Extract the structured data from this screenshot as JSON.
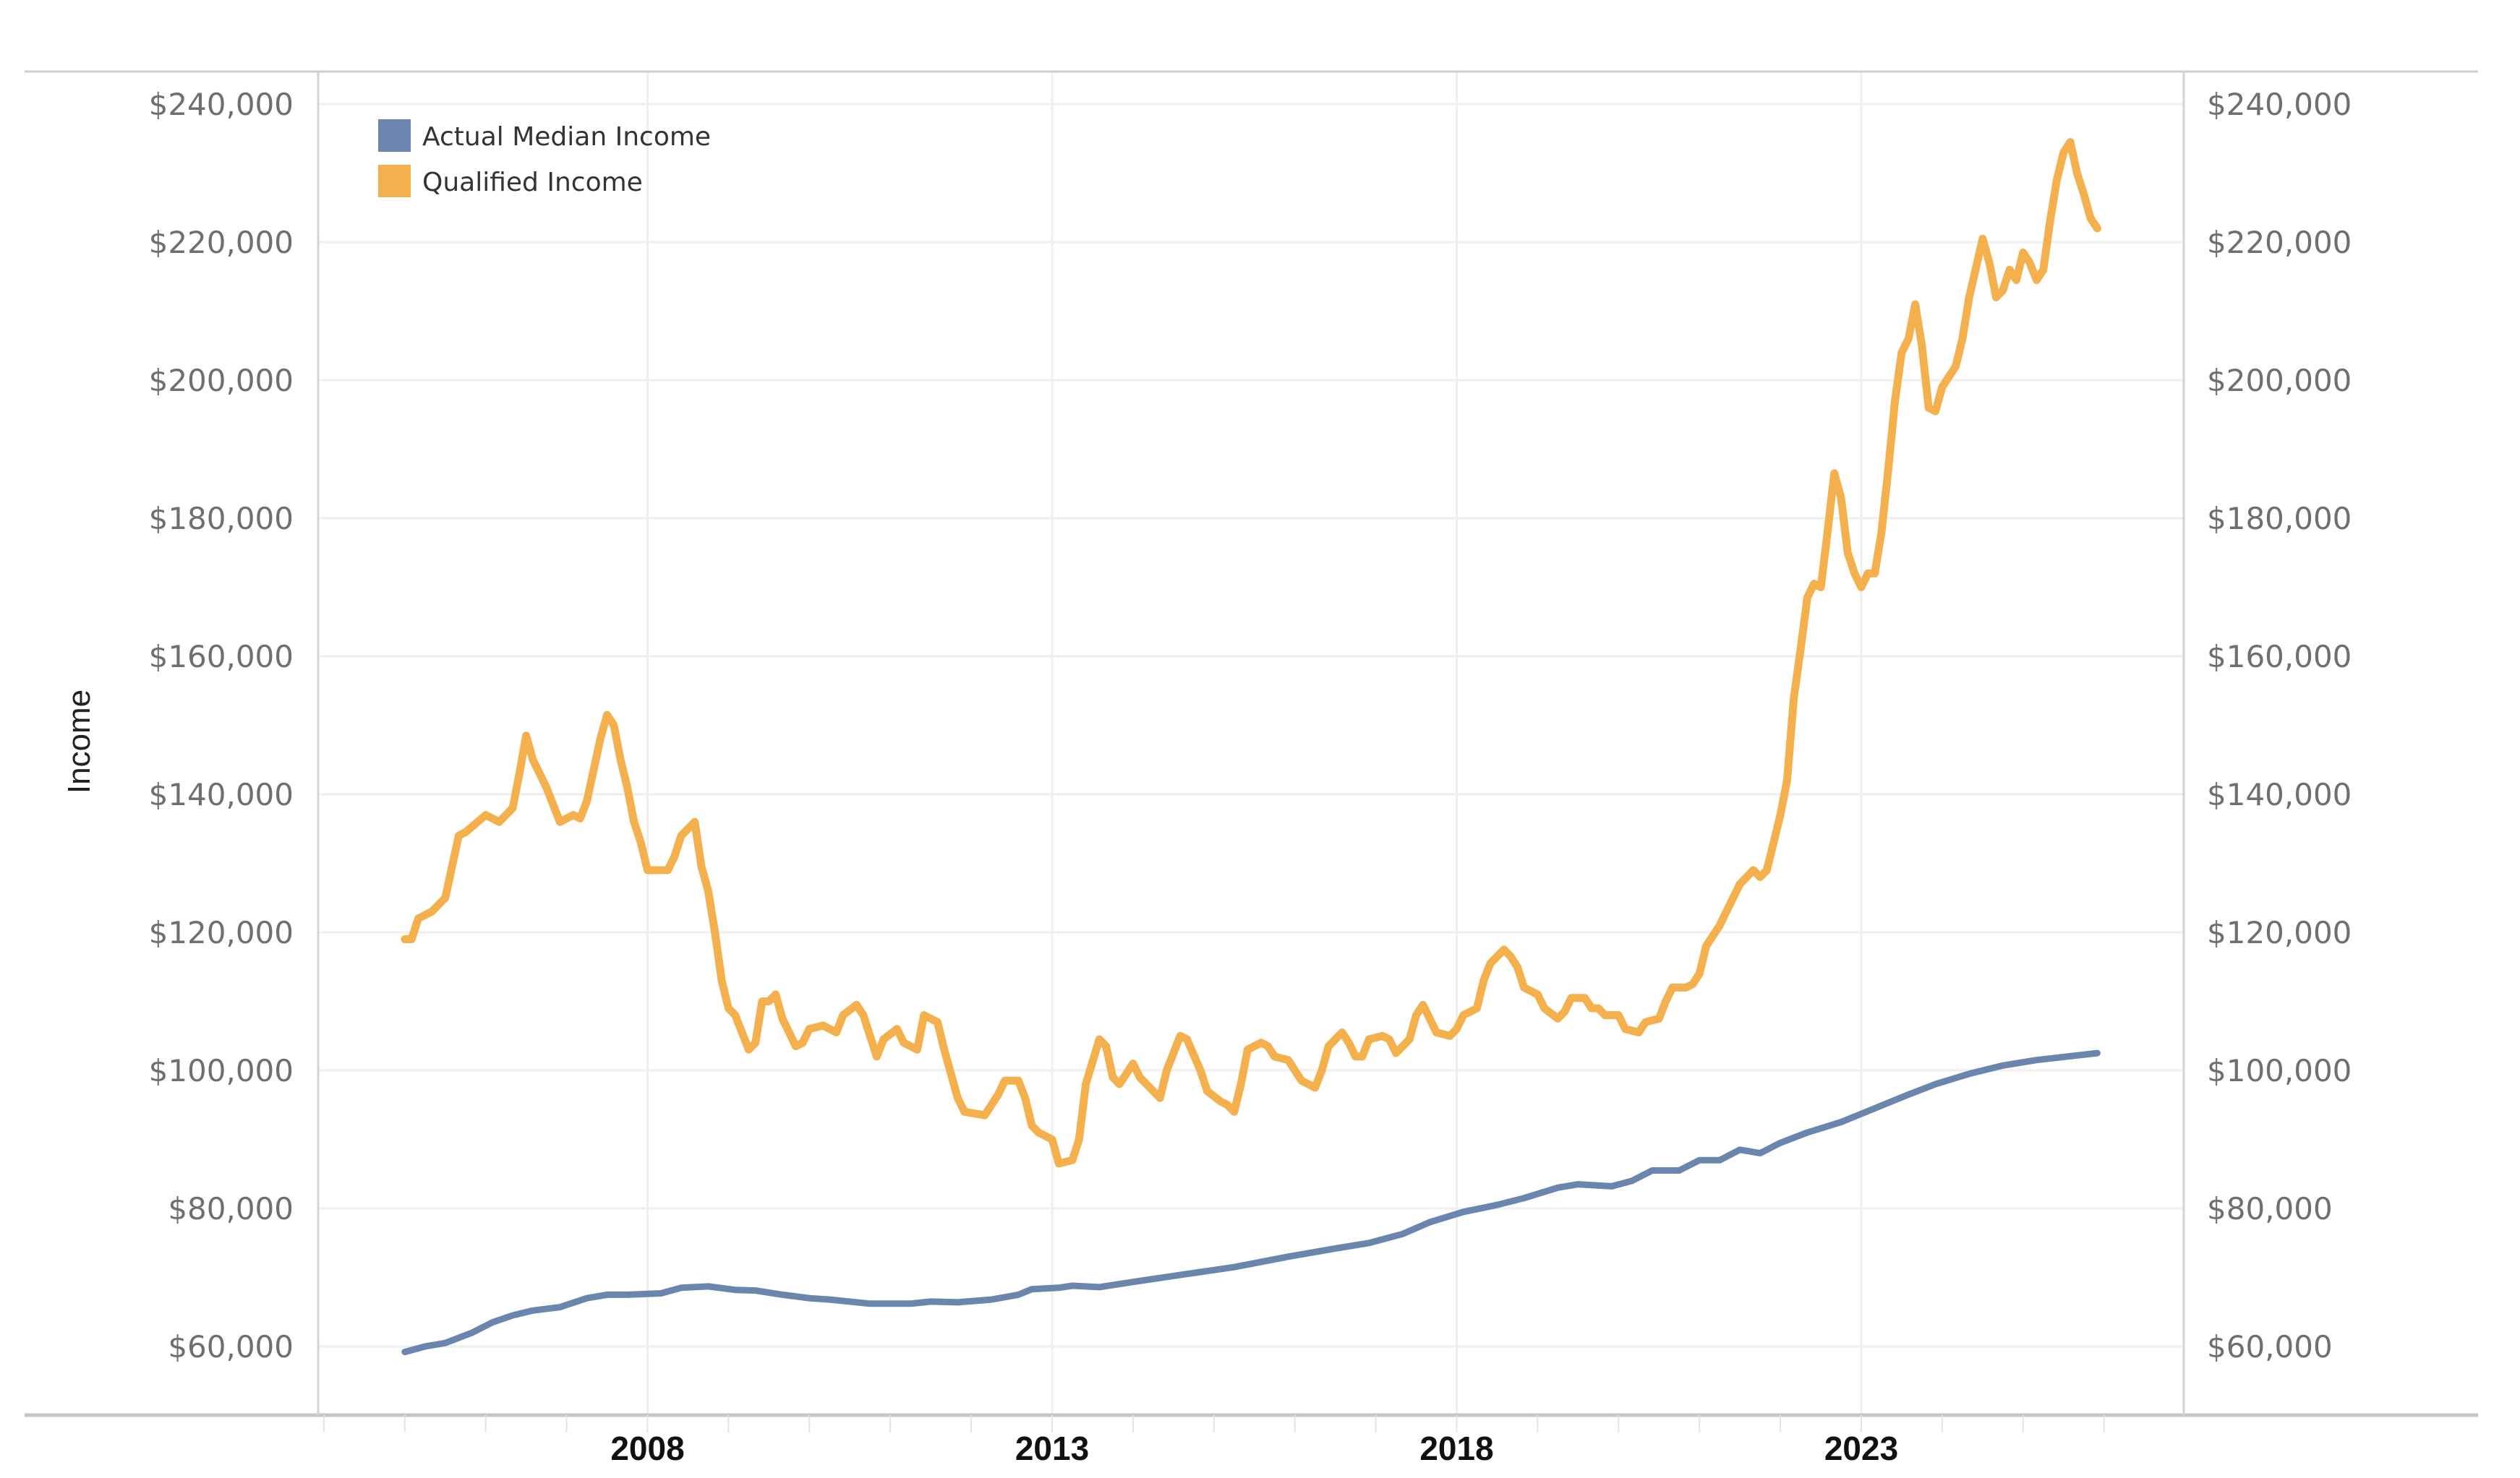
{
  "chart_data": {
    "type": "line",
    "title": "",
    "xlabel": "",
    "ylabel": "Income",
    "ylim": [
      55000,
      245000
    ],
    "xlim": [
      "2004-01",
      "2027-01"
    ],
    "yticks": [
      60000,
      80000,
      100000,
      120000,
      140000,
      160000,
      180000,
      200000,
      220000,
      240000
    ],
    "ytick_labels": [
      "$60,000",
      "$80,000",
      "$100,000",
      "$120,000",
      "$140,000",
      "$160,000",
      "$180,000",
      "$200,000",
      "$220,000",
      "$240,000"
    ],
    "dual_y_axis": true,
    "xticks": [
      "2008",
      "2013",
      "2018",
      "2023"
    ],
    "grid": true,
    "legend_position": "top-left",
    "series": [
      {
        "name": "Actual Median Income",
        "color": "#6a86ae",
        "points": [
          [
            "2005-01",
            59200
          ],
          [
            "2005-04",
            60000
          ],
          [
            "2005-07",
            60500
          ],
          [
            "2005-11",
            62000
          ],
          [
            "2006-02",
            63500
          ],
          [
            "2006-05",
            64500
          ],
          [
            "2006-08",
            65200
          ],
          [
            "2006-12",
            65700
          ],
          [
            "2007-04",
            67000
          ],
          [
            "2007-07",
            67500
          ],
          [
            "2007-10",
            67500
          ],
          [
            "2008-03",
            67700
          ],
          [
            "2008-06",
            68500
          ],
          [
            "2008-10",
            68700
          ],
          [
            "2009-02",
            68200
          ],
          [
            "2009-05",
            68100
          ],
          [
            "2009-09",
            67500
          ],
          [
            "2010-01",
            67000
          ],
          [
            "2010-04",
            66800
          ],
          [
            "2010-10",
            66200
          ],
          [
            "2011-04",
            66200
          ],
          [
            "2011-07",
            66500
          ],
          [
            "2011-11",
            66400
          ],
          [
            "2012-04",
            66800
          ],
          [
            "2012-08",
            67500
          ],
          [
            "2012-10",
            68300
          ],
          [
            "2013-02",
            68500
          ],
          [
            "2013-04",
            68800
          ],
          [
            "2013-08",
            68600
          ],
          [
            "2014-02",
            69500
          ],
          [
            "2014-09",
            70500
          ],
          [
            "2015-04",
            71500
          ],
          [
            "2015-12",
            73000
          ],
          [
            "2016-07",
            74200
          ],
          [
            "2016-12",
            75000
          ],
          [
            "2017-05",
            76300
          ],
          [
            "2017-09",
            78000
          ],
          [
            "2018-02",
            79500
          ],
          [
            "2018-07",
            80500
          ],
          [
            "2018-11",
            81500
          ],
          [
            "2019-04",
            83000
          ],
          [
            "2019-07",
            83500
          ],
          [
            "2019-12",
            83200
          ],
          [
            "2020-03",
            84000
          ],
          [
            "2020-06",
            85500
          ],
          [
            "2020-10",
            85500
          ],
          [
            "2021-01",
            87000
          ],
          [
            "2021-04",
            87000
          ],
          [
            "2021-07",
            88500
          ],
          [
            "2021-10",
            88000
          ],
          [
            "2022-01",
            89500
          ],
          [
            "2022-05",
            91000
          ],
          [
            "2022-10",
            92500
          ],
          [
            "2023-03",
            94500
          ],
          [
            "2023-08",
            96500
          ],
          [
            "2023-12",
            98000
          ],
          [
            "2024-05",
            99500
          ],
          [
            "2024-10",
            100700
          ],
          [
            "2025-03",
            101500
          ],
          [
            "2025-12",
            102500
          ]
        ]
      },
      {
        "name": "Qualified Income",
        "color": "#f3b04d",
        "points": [
          [
            "2005-01",
            119000
          ],
          [
            "2005-02",
            119000
          ],
          [
            "2005-03",
            122000
          ],
          [
            "2005-05",
            123000
          ],
          [
            "2005-07",
            125000
          ],
          [
            "2005-09",
            134000
          ],
          [
            "2005-10",
            134500
          ],
          [
            "2006-01",
            137000
          ],
          [
            "2006-03",
            136000
          ],
          [
            "2006-05",
            138000
          ],
          [
            "2006-06",
            143000
          ],
          [
            "2006-07",
            148500
          ],
          [
            "2006-08",
            145000
          ],
          [
            "2006-10",
            141000
          ],
          [
            "2006-12",
            136000
          ],
          [
            "2007-02",
            137000
          ],
          [
            "2007-03",
            136500
          ],
          [
            "2007-04",
            139000
          ],
          [
            "2007-06",
            148000
          ],
          [
            "2007-07",
            151500
          ],
          [
            "2007-08",
            150000
          ],
          [
            "2007-09",
            145000
          ],
          [
            "2007-10",
            141000
          ],
          [
            "2007-11",
            136000
          ],
          [
            "2007-12",
            133000
          ],
          [
            "2008-01",
            129000
          ],
          [
            "2008-02",
            129000
          ],
          [
            "2008-04",
            129000
          ],
          [
            "2008-05",
            131000
          ],
          [
            "2008-06",
            134000
          ],
          [
            "2008-08",
            136000
          ],
          [
            "2008-09",
            129500
          ],
          [
            "2008-10",
            126000
          ],
          [
            "2008-11",
            120000
          ],
          [
            "2008-12",
            113000
          ],
          [
            "2009-01",
            109000
          ],
          [
            "2009-02",
            108000
          ],
          [
            "2009-04",
            103000
          ],
          [
            "2009-05",
            104000
          ],
          [
            "2009-06",
            110000
          ],
          [
            "2009-07",
            110000
          ],
          [
            "2009-08",
            111000
          ],
          [
            "2009-09",
            107500
          ],
          [
            "2009-11",
            103500
          ],
          [
            "2009-12",
            104000
          ],
          [
            "2010-01",
            106000
          ],
          [
            "2010-03",
            106500
          ],
          [
            "2010-05",
            105500
          ],
          [
            "2010-06",
            108000
          ],
          [
            "2010-08",
            109500
          ],
          [
            "2010-09",
            108000
          ],
          [
            "2010-11",
            102000
          ],
          [
            "2010-12",
            104500
          ],
          [
            "2011-02",
            106000
          ],
          [
            "2011-03",
            104000
          ],
          [
            "2011-05",
            103000
          ],
          [
            "2011-06",
            108000
          ],
          [
            "2011-08",
            107000
          ],
          [
            "2011-09",
            103000
          ],
          [
            "2011-11",
            96000
          ],
          [
            "2011-12",
            94000
          ],
          [
            "2012-03",
            93500
          ],
          [
            "2012-05",
            96500
          ],
          [
            "2012-06",
            98500
          ],
          [
            "2012-08",
            98500
          ],
          [
            "2012-09",
            96000
          ],
          [
            "2012-10",
            92000
          ],
          [
            "2012-11",
            91000
          ],
          [
            "2013-01",
            90000
          ],
          [
            "2013-02",
            86500
          ],
          [
            "2013-04",
            87000
          ],
          [
            "2013-05",
            90000
          ],
          [
            "2013-06",
            98000
          ],
          [
            "2013-08",
            104500
          ],
          [
            "2013-09",
            103500
          ],
          [
            "2013-10",
            99000
          ],
          [
            "2013-11",
            98000
          ],
          [
            "2014-01",
            101000
          ],
          [
            "2014-02",
            99000
          ],
          [
            "2014-04",
            97000
          ],
          [
            "2014-05",
            96000
          ],
          [
            "2014-06",
            100000
          ],
          [
            "2014-08",
            105000
          ],
          [
            "2014-09",
            104500
          ],
          [
            "2014-11",
            100000
          ],
          [
            "2014-12",
            97000
          ],
          [
            "2015-02",
            95500
          ],
          [
            "2015-03",
            95000
          ],
          [
            "2015-04",
            94000
          ],
          [
            "2015-05",
            98000
          ],
          [
            "2015-06",
            103000
          ],
          [
            "2015-08",
            104000
          ],
          [
            "2015-09",
            103500
          ],
          [
            "2015-10",
            102000
          ],
          [
            "2015-12",
            101500
          ],
          [
            "2016-02",
            98500
          ],
          [
            "2016-04",
            97500
          ],
          [
            "2016-05",
            100000
          ],
          [
            "2016-06",
            103500
          ],
          [
            "2016-08",
            105500
          ],
          [
            "2016-09",
            104000
          ],
          [
            "2016-10",
            102000
          ],
          [
            "2016-11",
            102000
          ],
          [
            "2016-12",
            104500
          ],
          [
            "2017-02",
            105000
          ],
          [
            "2017-03",
            104500
          ],
          [
            "2017-04",
            102500
          ],
          [
            "2017-06",
            104500
          ],
          [
            "2017-07",
            108000
          ],
          [
            "2017-08",
            109500
          ],
          [
            "2017-09",
            107500
          ],
          [
            "2017-10",
            105500
          ],
          [
            "2017-12",
            105000
          ],
          [
            "2018-01",
            106000
          ],
          [
            "2018-02",
            108000
          ],
          [
            "2018-04",
            109000
          ],
          [
            "2018-05",
            113000
          ],
          [
            "2018-06",
            115500
          ],
          [
            "2018-08",
            117500
          ],
          [
            "2018-09",
            116500
          ],
          [
            "2018-10",
            115000
          ],
          [
            "2018-11",
            112000
          ],
          [
            "2019-01",
            111000
          ],
          [
            "2019-02",
            109000
          ],
          [
            "2019-04",
            107500
          ],
          [
            "2019-05",
            108500
          ],
          [
            "2019-06",
            110500
          ],
          [
            "2019-08",
            110500
          ],
          [
            "2019-09",
            109000
          ],
          [
            "2019-10",
            109000
          ],
          [
            "2019-11",
            108000
          ],
          [
            "2020-01",
            108000
          ],
          [
            "2020-02",
            106000
          ],
          [
            "2020-04",
            105500
          ],
          [
            "2020-05",
            107000
          ],
          [
            "2020-07",
            107500
          ],
          [
            "2020-08",
            110000
          ],
          [
            "2020-09",
            112000
          ],
          [
            "2020-11",
            112000
          ],
          [
            "2020-12",
            112500
          ],
          [
            "2021-01",
            114000
          ],
          [
            "2021-02",
            118000
          ],
          [
            "2021-04",
            121000
          ],
          [
            "2021-05",
            123000
          ],
          [
            "2021-06",
            125000
          ],
          [
            "2021-07",
            127000
          ],
          [
            "2021-08",
            128000
          ],
          [
            "2021-09",
            129000
          ],
          [
            "2021-10",
            128000
          ],
          [
            "2021-11",
            129000
          ],
          [
            "2021-12",
            133000
          ],
          [
            "2022-01",
            137000
          ],
          [
            "2022-02",
            142000
          ],
          [
            "2022-03",
            154000
          ],
          [
            "2022-04",
            161000
          ],
          [
            "2022-05",
            168500
          ],
          [
            "2022-06",
            170500
          ],
          [
            "2022-07",
            170000
          ],
          [
            "2022-08",
            178000
          ],
          [
            "2022-09",
            186500
          ],
          [
            "2022-10",
            183000
          ],
          [
            "2022-11",
            175000
          ],
          [
            "2022-12",
            172000
          ],
          [
            "2023-01",
            170000
          ],
          [
            "2023-02",
            172000
          ],
          [
            "2023-03",
            172000
          ],
          [
            "2023-04",
            178000
          ],
          [
            "2023-05",
            187000
          ],
          [
            "2023-06",
            197000
          ],
          [
            "2023-07",
            204000
          ],
          [
            "2023-08",
            206000
          ],
          [
            "2023-09",
            211000
          ],
          [
            "2023-10",
            205000
          ],
          [
            "2023-11",
            196000
          ],
          [
            "2023-12",
            195500
          ],
          [
            "2024-01",
            199000
          ],
          [
            "2024-03",
            202000
          ],
          [
            "2024-04",
            206000
          ],
          [
            "2024-05",
            212000
          ],
          [
            "2024-07",
            220500
          ],
          [
            "2024-08",
            217000
          ],
          [
            "2024-09",
            212000
          ],
          [
            "2024-10",
            213000
          ],
          [
            "2024-11",
            216000
          ],
          [
            "2024-12",
            214500
          ],
          [
            "2025-01",
            218500
          ],
          [
            "2025-02",
            217000
          ],
          [
            "2025-03",
            214500
          ],
          [
            "2025-04",
            216000
          ],
          [
            "2025-05",
            223000
          ],
          [
            "2025-06",
            229000
          ],
          [
            "2025-07",
            233000
          ],
          [
            "2025-08",
            234500
          ],
          [
            "2025-09",
            230000
          ],
          [
            "2025-10",
            227000
          ],
          [
            "2025-11",
            223500
          ],
          [
            "2025-12",
            222000
          ]
        ]
      }
    ]
  }
}
